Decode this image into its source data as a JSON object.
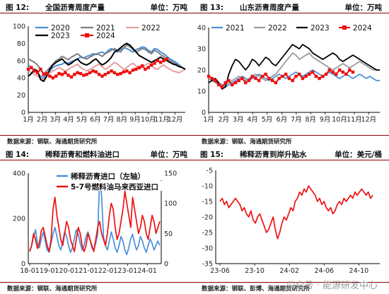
{
  "panels": [
    {
      "id": "p12",
      "fig_num": "图  12:",
      "title": "全国沥青周度产量",
      "unit": "单位：万吨",
      "source": "数据来源：钢联、海通期货研究所",
      "chart_data": {
        "type": "line",
        "ylim": [
          0,
          100
        ],
        "yticks": [
          0,
          20,
          40,
          60,
          80,
          100
        ],
        "xlim": [
          1,
          52
        ],
        "xticks": [
          {
            "x": 1,
            "label": "1月"
          },
          {
            "x": 5.5,
            "label": "2月"
          },
          {
            "x": 9.8,
            "label": "3月"
          },
          {
            "x": 14.1,
            "label": "4月"
          },
          {
            "x": 18.4,
            "label": "5月"
          },
          {
            "x": 22.8,
            "label": "6月"
          },
          {
            "x": 27.1,
            "label": "7月"
          },
          {
            "x": 31.4,
            "label": "8月"
          },
          {
            "x": 35.7,
            "label": "9月"
          },
          {
            "x": 40.0,
            "label": "10月"
          },
          {
            "x": 44.4,
            "label": "11月"
          },
          {
            "x": 48.7,
            "label": "12月"
          }
        ],
        "series": [
          {
            "name": "2020",
            "color": "#4a90d9",
            "width": 2.0,
            "marker": "none",
            "values": [
              55,
              52,
              48,
              45,
              42,
              40,
              44,
              48,
              52,
              54,
              55,
              56,
              58,
              57,
              59,
              60,
              62,
              64,
              63,
              65,
              66,
              68,
              67,
              69,
              70,
              68,
              72,
              74,
              72,
              70,
              73,
              75,
              74,
              72,
              70,
              73,
              74,
              76,
              75,
              72,
              70,
              74,
              73,
              70,
              68,
              65,
              62,
              60,
              58,
              55,
              52,
              50
            ]
          },
          {
            "name": "2021",
            "color": "#7f7f7f",
            "width": 2.0,
            "marker": "none",
            "values": [
              62,
              60,
              58,
              55,
              50,
              45,
              48,
              52,
              56,
              60,
              62,
              65,
              63,
              61,
              64,
              66,
              68,
              65,
              63,
              62,
              64,
              66,
              68,
              67,
              65,
              68,
              70,
              72,
              74,
              72,
              70,
              75,
              78,
              76,
              73,
              70,
              72,
              74,
              73,
              70,
              68,
              72,
              70,
              67,
              65,
              62,
              60,
              58,
              56,
              54,
              52,
              50
            ]
          },
          {
            "name": "2022",
            "color": "#e69f9f",
            "width": 2.0,
            "marker": "none",
            "values": [
              48,
              46,
              44,
              42,
              40,
              38,
              42,
              46,
              48,
              50,
              52,
              50,
              48,
              50,
              52,
              54,
              56,
              52,
              50,
              48,
              50,
              52,
              54,
              56,
              53,
              50,
              52,
              55,
              58,
              56,
              53,
              50,
              52,
              55,
              57,
              54,
              50,
              52,
              55,
              57,
              54,
              51,
              50,
              53,
              55,
              52,
              50,
              48,
              47,
              46,
              48,
              50
            ]
          },
          {
            "name": "2023",
            "color": "#000000",
            "width": 2.0,
            "marker": "none",
            "values": [
              42,
              45,
              50,
              48,
              38,
              36,
              42,
              50,
              55,
              58,
              60,
              62,
              58,
              55,
              57,
              60,
              62,
              58,
              56,
              55,
              57,
              60,
              62,
              58,
              55,
              57,
              60,
              64,
              70,
              72,
              75,
              78,
              80,
              78,
              74,
              70,
              66,
              64,
              62,
              60,
              58,
              60,
              62,
              64,
              62,
              60,
              58,
              56,
              55,
              53,
              52,
              50
            ]
          },
          {
            "name": "2024",
            "color": "#ee1111",
            "width": 2.0,
            "marker": "square",
            "values": [
              50,
              52,
              48,
              46,
              50,
              44,
              45,
              42,
              40,
              42,
              45,
              44,
              46,
              43,
              41,
              44,
              46,
              45,
              43,
              44,
              46,
              48,
              47,
              44,
              42,
              44,
              46,
              48,
              46,
              44,
              45,
              47,
              48,
              46,
              49,
              50,
              52,
              54,
              50,
              52,
              55,
              57,
              60,
              58,
              60,
              62
            ]
          }
        ],
        "legend": {
          "columns": 3
        }
      }
    },
    {
      "id": "p13",
      "fig_num": "图  13:",
      "title": "山东沥青周度产量",
      "unit": "单位：万吨",
      "source": "数据来源：钢联、海通期货研究所",
      "chart_data": {
        "type": "line",
        "ylim": [
          0,
          40
        ],
        "yticks": [
          0,
          10,
          20,
          30,
          40
        ],
        "xlim": [
          1,
          52
        ],
        "xticks": [
          {
            "x": 1,
            "label": "1月"
          },
          {
            "x": 5.5,
            "label": "2月"
          },
          {
            "x": 9.8,
            "label": "3月"
          },
          {
            "x": 14.1,
            "label": "4月"
          },
          {
            "x": 18.4,
            "label": "5月"
          },
          {
            "x": 22.8,
            "label": "6月"
          },
          {
            "x": 27.1,
            "label": "7月"
          },
          {
            "x": 31.4,
            "label": "8月"
          },
          {
            "x": 35.7,
            "label": "9月"
          },
          {
            "x": 40.0,
            "label": "10月"
          },
          {
            "x": 44.4,
            "label": "11月"
          },
          {
            "x": 48.7,
            "label": "12月"
          }
        ],
        "series": [
          {
            "name": "2021",
            "color": "#4a90d9",
            "width": 1.8,
            "marker": "none",
            "values": [
              17,
              16,
              15,
              14,
              13,
              12,
              13,
              14,
              15,
              16,
              17,
              16,
              15,
              16,
              17,
              18,
              17,
              16,
              15,
              16,
              17,
              18,
              17,
              16,
              17,
              18,
              19,
              18,
              17,
              18,
              19,
              20,
              19,
              18,
              17,
              18,
              19,
              18,
              17,
              16,
              17,
              18,
              17,
              16,
              17,
              18,
              17,
              16,
              17,
              16,
              15,
              15
            ]
          },
          {
            "name": "2022",
            "color": "#9a9a9a",
            "width": 1.8,
            "marker": "none",
            "values": [
              16,
              15,
              14,
              13,
              12,
              13,
              14,
              15,
              16,
              17,
              16,
              15,
              16,
              17,
              18,
              17,
              16,
              15,
              16,
              17,
              18,
              20,
              22,
              24,
              26,
              28,
              27,
              25,
              26,
              27,
              28,
              26,
              25,
              24,
              23,
              22,
              21,
              20,
              21,
              22,
              23,
              22,
              21,
              22,
              23,
              24,
              23,
              22,
              21,
              20,
              20,
              20
            ]
          },
          {
            "name": "2023",
            "color": "#000000",
            "width": 1.8,
            "marker": "none",
            "values": [
              14,
              15,
              16,
              14,
              11,
              12,
              18,
              22,
              25,
              24,
              22,
              20,
              22,
              25,
              24,
              22,
              24,
              26,
              25,
              23,
              22,
              24,
              26,
              28,
              30,
              32,
              31,
              30,
              32,
              31,
              30,
              28,
              27,
              26,
              25,
              26,
              27,
              28,
              27,
              25,
              24,
              25,
              26,
              27,
              26,
              25,
              24,
              23,
              22,
              21,
              20,
              20
            ]
          },
          {
            "name": "2024",
            "color": "#ee1111",
            "width": 2.0,
            "marker": "square",
            "values": [
              17,
              16,
              15,
              13,
              12,
              14,
              15,
              13,
              14,
              15,
              16,
              14,
              15,
              17,
              16,
              15,
              17,
              18,
              16,
              15,
              14,
              16,
              17,
              18,
              16,
              15,
              17,
              18,
              16,
              17,
              18,
              19,
              17,
              16,
              17,
              18,
              20,
              19,
              18,
              20,
              19,
              18,
              20,
              19
            ]
          }
        ],
        "legend": {
          "columns": 4
        }
      }
    },
    {
      "id": "p14",
      "fig_num": "图  14:",
      "title": "稀释沥青和燃料油进口",
      "unit": "单位：万吨",
      "source": "数据来源：钢联、海通期货研究所",
      "chart_data": {
        "type": "line",
        "ylim_left": [
          0,
          400
        ],
        "yticks_left": [
          0,
          200,
          400
        ],
        "ylim_right": [
          0,
          150
        ],
        "yticks_right": [
          0,
          50,
          100,
          150
        ],
        "xticks": [
          "18-01",
          "19-01",
          "20-01",
          "21-01",
          "22-01",
          "23-01",
          "24-01"
        ],
        "series": [
          {
            "name": "稀释沥青进口（左轴）",
            "color": "#4a90d9",
            "axis": "left",
            "values": [
              60,
              80,
              120,
              150,
              90,
              70,
              110,
              140,
              100,
              60,
              50,
              90,
              130,
              160,
              120,
              80,
              60,
              100,
              140,
              120,
              80,
              50,
              70,
              110,
              150,
              130,
              90,
              60,
              80,
              120,
              140,
              110,
              70,
              60,
              90,
              130,
              380,
              300,
              120,
              80,
              60,
              100,
              140,
              110,
              70,
              50,
              80,
              120,
              100,
              60,
              40,
              70,
              110,
              130,
              90,
              60,
              80,
              120,
              100,
              70,
              50,
              80,
              110,
              90,
              60,
              80,
              100,
              80
            ]
          },
          {
            "name": "5-7号燃料油马来西亚进口",
            "color": "#ee1111",
            "axis": "right",
            "values": [
              20,
              30,
              50,
              40,
              25,
              35,
              55,
              60,
              45,
              30,
              20,
              40,
              90,
              110,
              80,
              60,
              40,
              30,
              50,
              70,
              60,
              40,
              30,
              20,
              40,
              60,
              50,
              30,
              20,
              30,
              50,
              40,
              30,
              20,
              40,
              60,
              70,
              50,
              40,
              30,
              50,
              80,
              100,
              90,
              60,
              40,
              50,
              70,
              90,
              120,
              100,
              80,
              60,
              110,
              90,
              70,
              50,
              60,
              80,
              70,
              50,
              40,
              60,
              80,
              70,
              50,
              60,
              70
            ]
          }
        ],
        "legend": {
          "columns": 1
        }
      }
    },
    {
      "id": "p15",
      "fig_num": "图  15:",
      "title": "稀释沥青到岸升贴水",
      "unit": "单位：美元/桶",
      "source": "数据来源：钢联、彭博、海通期货研究所",
      "chart_data": {
        "type": "line",
        "ylim": [
          -35,
          -5
        ],
        "yticks": [
          -35,
          -30,
          -25,
          -20,
          -15,
          -10,
          -5
        ],
        "xticks": [
          "23-06",
          "23-10",
          "24-02",
          "24-06",
          "24-10"
        ],
        "series": [
          {
            "name": "",
            "color": "#ee1111",
            "values": [
              -15,
              -14,
              -16,
              -15,
              -17,
              -16,
              -15,
              -14,
              -15,
              -16,
              -18,
              -17,
              -19,
              -20,
              -18,
              -21,
              -22,
              -20,
              -19,
              -21,
              -23,
              -25,
              -24,
              -22,
              -20,
              -24,
              -27,
              -25,
              -22,
              -20,
              -21,
              -19,
              -17,
              -18,
              -15,
              -14,
              -12,
              -13,
              -11,
              -12,
              -10,
              -11,
              -12,
              -13,
              -15,
              -14,
              -16,
              -15,
              -17,
              -18,
              -17,
              -19,
              -18,
              -16,
              -15,
              -16,
              -14,
              -15,
              -14,
              -13,
              -14,
              -12,
              -13,
              -12,
              -11,
              -12,
              -13,
              -12,
              -14,
              -13
            ]
          }
        ]
      }
    }
  ],
  "watermark": "公众号 · 能源研发中心"
}
